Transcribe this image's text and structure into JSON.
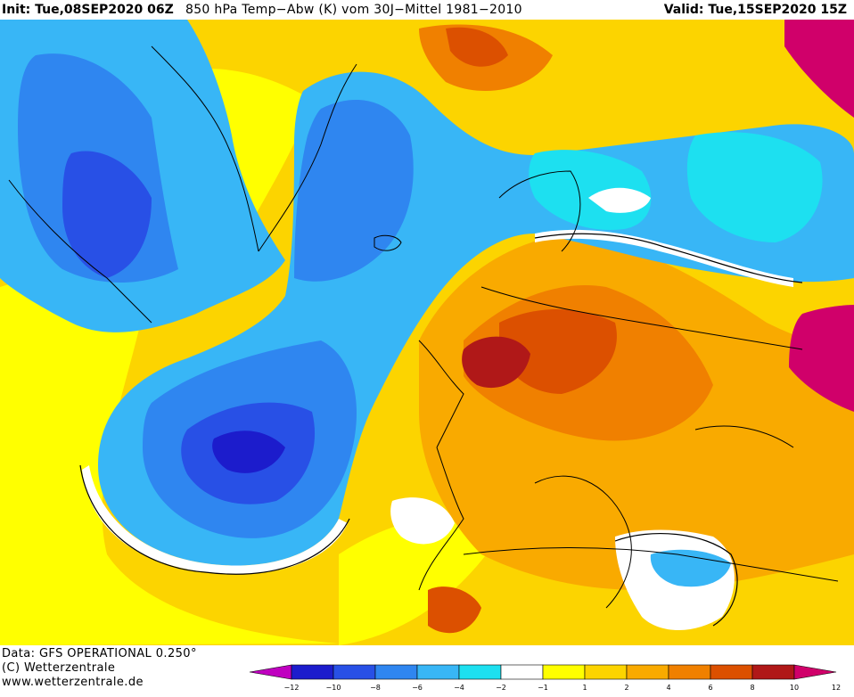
{
  "header": {
    "init": "Init: Tue,08SEP2020 06Z",
    "title": "850 hPa Temp−Abw (K) vom 30J−Mittel 1981−2010",
    "valid": "Valid: Tue,15SEP2020 15Z"
  },
  "footer": {
    "data_line": "Data: GFS OPERATIONAL 0.250°",
    "copyright": "(C) Wetterzentrale",
    "url": "www.wetterzentrale.de"
  },
  "colorbar": {
    "bins": [
      {
        "color": "#c000c0"
      },
      {
        "color": "#1c1ccc"
      },
      {
        "color": "#2850e6"
      },
      {
        "color": "#2f86f0"
      },
      {
        "color": "#38b6f6"
      },
      {
        "color": "#1de0f0"
      },
      {
        "color": "#ffffff"
      },
      {
        "color": "#ffff00"
      },
      {
        "color": "#fcd400"
      },
      {
        "color": "#f9aa00"
      },
      {
        "color": "#f08000"
      },
      {
        "color": "#dc5000"
      },
      {
        "color": "#b01818"
      },
      {
        "color": "#d0006a"
      }
    ],
    "tick_labels": [
      "−12",
      "−10",
      "−8",
      "−6",
      "−4",
      "−2",
      "−1",
      "1",
      "2",
      "4",
      "6",
      "8",
      "10",
      "12"
    ]
  },
  "map_colors": {
    "land_line": "#000000",
    "contour_line": "#000000"
  }
}
